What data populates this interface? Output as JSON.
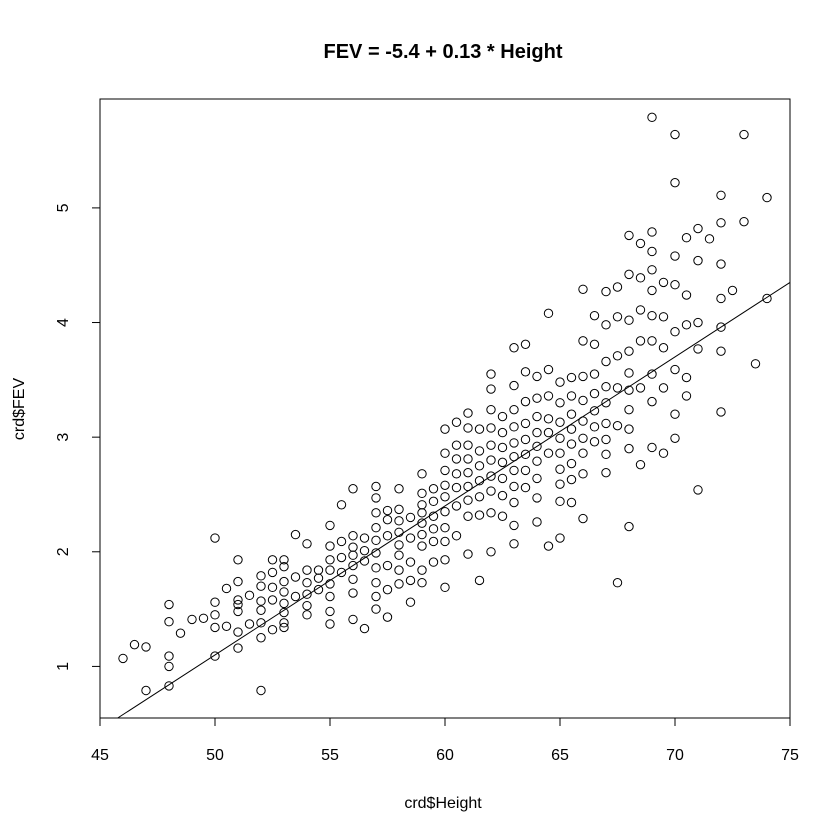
{
  "chart_data": {
    "type": "scatter",
    "title": "FEV = -5.4 + 0.13 * Height",
    "xlabel": "crd$Height",
    "ylabel": "crd$FEV",
    "xlim": [
      45,
      75
    ],
    "ylim": [
      0.55,
      5.95
    ],
    "xticks": [
      45,
      50,
      55,
      60,
      65,
      70,
      75
    ],
    "yticks": [
      1,
      2,
      3,
      4,
      5
    ],
    "grid": false,
    "marker": "open-circle",
    "regression_line": {
      "intercept": -5.4,
      "slope": 0.13
    },
    "series": [
      {
        "x": [
          46,
          46.5,
          47,
          47,
          48,
          48,
          48,
          48,
          48,
          48.5,
          49,
          49.5,
          50,
          50,
          50,
          50,
          50,
          50.5,
          50.5,
          51,
          51,
          51,
          51,
          51,
          51,
          51,
          51.5,
          51.5,
          52,
          52,
          52,
          52,
          52,
          52,
          52,
          52.5,
          52.5,
          52.5,
          52.5,
          52.5,
          53,
          53,
          53,
          53,
          53,
          53,
          53,
          53,
          53.5,
          53.5,
          53.5,
          54,
          54,
          54,
          54,
          54,
          54,
          54.5,
          54.5,
          54.5,
          55,
          55,
          55,
          55,
          55,
          55,
          55,
          55,
          55.5,
          55.5,
          55.5,
          55.5,
          56,
          56,
          56,
          56,
          56,
          56,
          56,
          56,
          56.5,
          56.5,
          56.5,
          56.5,
          57,
          57,
          57,
          57,
          57,
          57,
          57,
          57,
          57,
          57,
          57.5,
          57.5,
          57.5,
          57.5,
          57.5,
          57.5,
          58,
          58,
          58,
          58,
          58,
          58,
          58,
          58,
          58.5,
          58.5,
          58.5,
          58.5,
          58.5,
          59,
          59,
          59,
          59,
          59,
          59,
          59,
          59,
          59,
          59.5,
          59.5,
          59.5,
          59.5,
          59.5,
          59.5,
          60,
          60,
          60,
          60,
          60,
          60,
          60,
          60,
          60,
          60,
          60.5,
          60.5,
          60.5,
          60.5,
          60.5,
          60.5,
          60.5,
          61,
          61,
          61,
          61,
          61,
          61,
          61,
          61,
          61,
          61.5,
          61.5,
          61.5,
          61.5,
          61.5,
          61.5,
          61.5,
          62,
          62,
          62,
          62,
          62,
          62,
          62,
          62,
          62,
          62,
          62.5,
          62.5,
          62.5,
          62.5,
          62.5,
          62.5,
          62.5,
          63,
          63,
          63,
          63,
          63,
          63,
          63,
          63,
          63,
          63,
          63,
          63.5,
          63.5,
          63.5,
          63.5,
          63.5,
          63.5,
          63.5,
          63.5,
          64,
          64,
          64,
          64,
          64,
          64,
          64,
          64,
          64,
          64.5,
          64.5,
          64.5,
          64.5,
          64.5,
          64.5,
          64.5,
          65,
          65,
          65,
          65,
          65,
          65,
          65,
          65,
          65,
          65.5,
          65.5,
          65.5,
          65.5,
          65.5,
          65.5,
          65.5,
          65.5,
          66,
          66,
          66,
          66,
          66,
          66,
          66,
          66,
          66,
          66.5,
          66.5,
          66.5,
          66.5,
          66.5,
          66.5,
          66.5,
          67,
          67,
          67,
          67,
          67,
          67,
          67,
          67,
          67,
          67.5,
          67.5,
          67.5,
          67.5,
          67.5,
          67.5,
          68,
          68,
          68,
          68,
          68,
          68,
          68,
          68,
          68,
          68,
          68.5,
          68.5,
          68.5,
          68.5,
          68.5,
          68.5,
          69,
          69,
          69,
          69,
          69,
          69,
          69,
          69,
          69,
          69,
          69.5,
          69.5,
          69.5,
          69.5,
          69.5,
          70,
          70,
          70,
          70,
          70,
          70,
          70,
          70,
          70.5,
          70.5,
          70.5,
          70.5,
          70.5,
          71,
          71,
          71,
          71,
          71,
          71.5,
          72,
          72,
          72,
          72,
          72,
          72,
          72,
          72.5,
          73,
          73,
          73.5,
          74,
          74
        ],
        "y": [
          1.07,
          1.19,
          1.17,
          0.79,
          1.54,
          1.39,
          1.09,
          1.0,
          0.83,
          1.29,
          1.41,
          1.42,
          2.12,
          1.56,
          1.45,
          1.34,
          1.09,
          1.68,
          1.35,
          1.93,
          1.74,
          1.58,
          1.54,
          1.48,
          1.3,
          1.16,
          1.62,
          1.37,
          1.79,
          1.7,
          1.57,
          1.49,
          1.38,
          1.25,
          0.79,
          1.93,
          1.82,
          1.69,
          1.58,
          1.32,
          1.93,
          1.87,
          1.74,
          1.65,
          1.55,
          1.47,
          1.38,
          1.34,
          2.15,
          1.78,
          1.61,
          2.07,
          1.84,
          1.73,
          1.63,
          1.53,
          1.45,
          1.84,
          1.77,
          1.67,
          2.23,
          2.05,
          1.93,
          1.84,
          1.72,
          1.61,
          1.48,
          1.37,
          2.41,
          2.09,
          1.95,
          1.82,
          2.55,
          2.14,
          2.04,
          1.97,
          1.88,
          1.76,
          1.64,
          1.41,
          2.12,
          2.01,
          1.92,
          1.33,
          2.57,
          2.47,
          2.34,
          2.21,
          2.1,
          1.99,
          1.86,
          1.73,
          1.61,
          1.5,
          2.36,
          2.28,
          2.14,
          1.88,
          1.67,
          1.43,
          2.55,
          2.37,
          2.27,
          2.17,
          2.06,
          1.97,
          1.84,
          1.72,
          2.3,
          2.12,
          1.91,
          1.75,
          1.56,
          2.68,
          2.51,
          2.41,
          2.34,
          2.25,
          2.15,
          2.05,
          1.84,
          1.73,
          2.55,
          2.44,
          2.31,
          2.2,
          2.09,
          1.91,
          3.07,
          2.86,
          2.71,
          2.58,
          2.48,
          2.35,
          2.21,
          2.09,
          1.93,
          1.69,
          3.13,
          2.93,
          2.81,
          2.68,
          2.56,
          2.4,
          2.14,
          3.21,
          3.08,
          2.93,
          2.81,
          2.69,
          2.57,
          2.45,
          2.31,
          1.98,
          3.07,
          2.88,
          2.75,
          2.62,
          2.48,
          2.32,
          1.75,
          3.55,
          3.42,
          3.24,
          3.08,
          2.93,
          2.8,
          2.66,
          2.53,
          2.34,
          2.0,
          3.18,
          3.04,
          2.91,
          2.78,
          2.64,
          2.49,
          2.31,
          3.78,
          3.45,
          3.24,
          3.09,
          2.95,
          2.83,
          2.71,
          2.57,
          2.43,
          2.23,
          2.07,
          3.81,
          3.57,
          3.31,
          3.12,
          2.98,
          2.85,
          2.71,
          2.56,
          3.53,
          3.34,
          3.18,
          3.04,
          2.92,
          2.79,
          2.64,
          2.47,
          2.26,
          4.08,
          3.59,
          3.36,
          3.16,
          3.04,
          2.86,
          2.05,
          3.48,
          3.3,
          3.13,
          2.99,
          2.86,
          2.72,
          2.59,
          2.44,
          2.12,
          3.52,
          3.36,
          3.2,
          3.07,
          2.94,
          2.77,
          2.63,
          2.43,
          4.29,
          3.84,
          3.53,
          3.32,
          3.14,
          2.99,
          2.86,
          2.68,
          2.29,
          4.06,
          3.81,
          3.55,
          3.38,
          3.23,
          3.09,
          2.96,
          4.27,
          3.98,
          3.66,
          3.44,
          3.3,
          3.12,
          2.98,
          2.85,
          2.69,
          4.31,
          4.05,
          3.71,
          3.43,
          3.1,
          1.73,
          4.76,
          4.42,
          4.02,
          3.75,
          3.56,
          3.41,
          3.24,
          3.07,
          2.9,
          2.22,
          4.69,
          4.39,
          4.11,
          3.84,
          3.43,
          2.76,
          5.79,
          4.79,
          4.62,
          4.46,
          4.28,
          4.06,
          3.84,
          3.55,
          3.31,
          2.91,
          4.35,
          4.05,
          3.78,
          3.43,
          2.86,
          5.64,
          5.22,
          4.58,
          4.33,
          3.92,
          3.59,
          3.2,
          2.99,
          4.74,
          4.24,
          3.98,
          3.52,
          3.36,
          4.82,
          4.54,
          4.0,
          3.77,
          2.54,
          4.73,
          5.11,
          4.87,
          4.51,
          4.21,
          3.96,
          3.75,
          3.22,
          4.28,
          5.64,
          4.88,
          3.64,
          5.09,
          4.21
        ]
      }
    ]
  }
}
